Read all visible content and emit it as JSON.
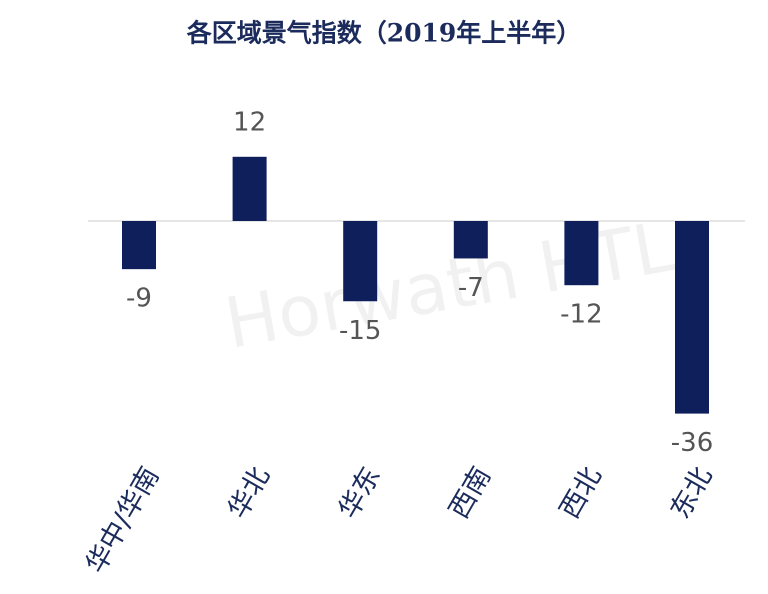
{
  "chart_data": {
    "type": "bar",
    "title": "各区域景气指数（2019年上半年）",
    "categories": [
      "华中/华南",
      "华北",
      "华东",
      "西南",
      "西北",
      "东北"
    ],
    "values": [
      -9,
      12,
      -15,
      -7,
      -12,
      -36
    ],
    "color": "#0e1f5b",
    "watermark": "Horwath HTL"
  }
}
